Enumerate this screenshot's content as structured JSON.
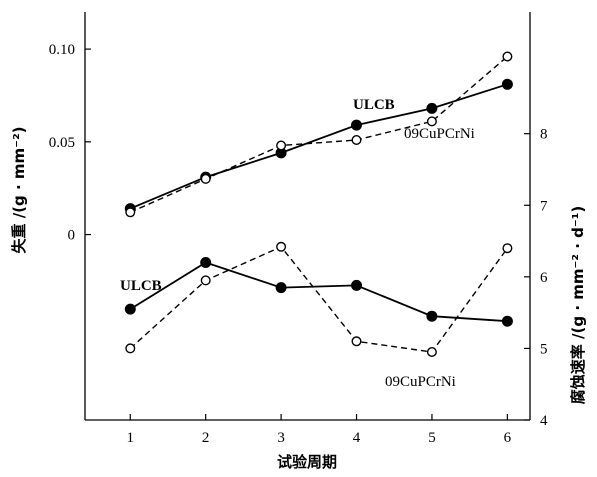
{
  "chart_data": {
    "type": "line",
    "title": "",
    "xlabel": "试验周期",
    "ylabel_left": "失重 /(g · mm⁻²)",
    "ylabel_right": "腐蚀速率 /(g · mm⁻² · d⁻¹)",
    "x": [
      1,
      2,
      3,
      4,
      5,
      6
    ],
    "xlim": [
      0.4,
      6.3
    ],
    "ylim_left": [
      -0.1,
      0.12
    ],
    "ylim_right": [
      4,
      9.7
    ],
    "left_ticks": [
      "0.10",
      "0.05",
      "0"
    ],
    "right_ticks": [
      "4",
      "5",
      "6",
      "7",
      "8"
    ],
    "x_ticks": [
      "1",
      "2",
      "3",
      "4",
      "5",
      "6"
    ],
    "grid": false,
    "series": [
      {
        "name": "ULCB",
        "axis": "left",
        "marker": "filled",
        "style": "solid",
        "values": [
          0.014,
          0.031,
          0.044,
          0.059,
          0.068,
          0.081
        ]
      },
      {
        "name": "09CuPCrNi",
        "axis": "left",
        "marker": "open",
        "style": "dashed",
        "values": [
          0.012,
          0.03,
          0.048,
          0.051,
          0.061,
          0.096
        ]
      },
      {
        "name": "ULCB",
        "axis": "right",
        "marker": "filled",
        "style": "solid",
        "values": [
          5.55,
          6.2,
          5.85,
          5.88,
          5.45,
          5.38
        ]
      },
      {
        "name": "09CuPCrNi",
        "axis": "right",
        "marker": "open",
        "style": "dashed",
        "values": [
          5.0,
          5.95,
          6.42,
          5.1,
          4.95,
          6.4
        ]
      }
    ],
    "annotations": {
      "ulcb_top": "ULCB",
      "cu_top": "09CuPCrNi",
      "ulcb_bottom": "ULCB",
      "cu_bottom": "09CuPCrNi"
    }
  }
}
